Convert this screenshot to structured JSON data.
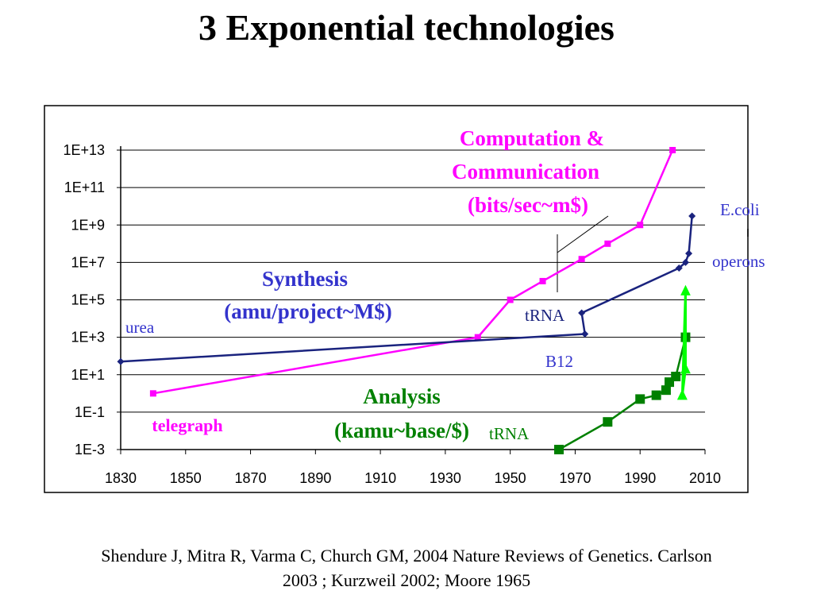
{
  "page": {
    "title": "3 Exponential technologies",
    "caption_lines": [
      "Shendure J, Mitra R, Varma C, Church GM,  2004 Nature Reviews of Genetics. Carlson",
      "2003 ;  Kurzweil 2002; Moore 1965"
    ]
  },
  "chart_data": {
    "type": "line",
    "title": "",
    "xlabel": "",
    "ylabel": "",
    "x_scale": "linear",
    "y_scale": "log",
    "xlim": [
      1830,
      2010
    ],
    "ylim": [
      0.001,
      10000000000000
    ],
    "x_ticks": [
      "1830",
      "1850",
      "1870",
      "1890",
      "1910",
      "1930",
      "1950",
      "1970",
      "1990",
      "2010"
    ],
    "y_ticks": [
      "1E-3",
      "1E-1",
      "1E+1",
      "1E+3",
      "1E+5",
      "1E+7",
      "1E+9",
      "1E+11",
      "1E+13"
    ],
    "y_tick_values": [
      0.001,
      0.1,
      10,
      1000,
      100000,
      10000000,
      1000000000,
      100000000000,
      10000000000000
    ],
    "grid": "horizontal",
    "colors": {
      "computation": "#ff00ff",
      "synthesis": "#1a237e",
      "analysis": "#008000",
      "analysis_projection": "#00ff00",
      "synthesis_labels": "#3333cc"
    },
    "series": [
      {
        "key": "computation",
        "x": [
          1840,
          1940,
          1950,
          1960,
          1972,
          1980,
          1990,
          2000
        ],
        "y": [
          1,
          1000,
          100000,
          1000000,
          15000000,
          100000000,
          1000000000,
          10000000000000
        ]
      },
      {
        "key": "synthesis",
        "x": [
          1830,
          1973,
          1972,
          2002,
          2004,
          2005,
          2006
        ],
        "y": [
          50,
          1500,
          20000,
          5000000,
          10000000,
          30000000,
          3000000000
        ]
      },
      {
        "key": "analysis",
        "x": [
          1965,
          1980,
          1990,
          1995,
          1998,
          1999,
          2001,
          2004
        ],
        "y": [
          0.001,
          0.03,
          0.5,
          0.8,
          1.5,
          4,
          8,
          1000
        ]
      },
      {
        "key": "analysis_projection",
        "x": [
          2003,
          2004,
          2004,
          2003
        ],
        "y": [
          0.8,
          20,
          300000,
          0.8
        ]
      }
    ],
    "annotations": {
      "computation_label": [
        "Computation &",
        "Communication",
        "(bits/sec~m$)"
      ],
      "synthesis_label": [
        "Synthesis",
        "(amu/project~M$)"
      ],
      "analysis_label": [
        "Analysis",
        "(kamu~base/$)"
      ],
      "telegraph": "telegraph",
      "urea": "urea",
      "trna_synthesis": "tRNA",
      "b12": "B12",
      "trna_analysis": "tRNA",
      "ecoli": "E.coli",
      "operons": "operons"
    }
  }
}
